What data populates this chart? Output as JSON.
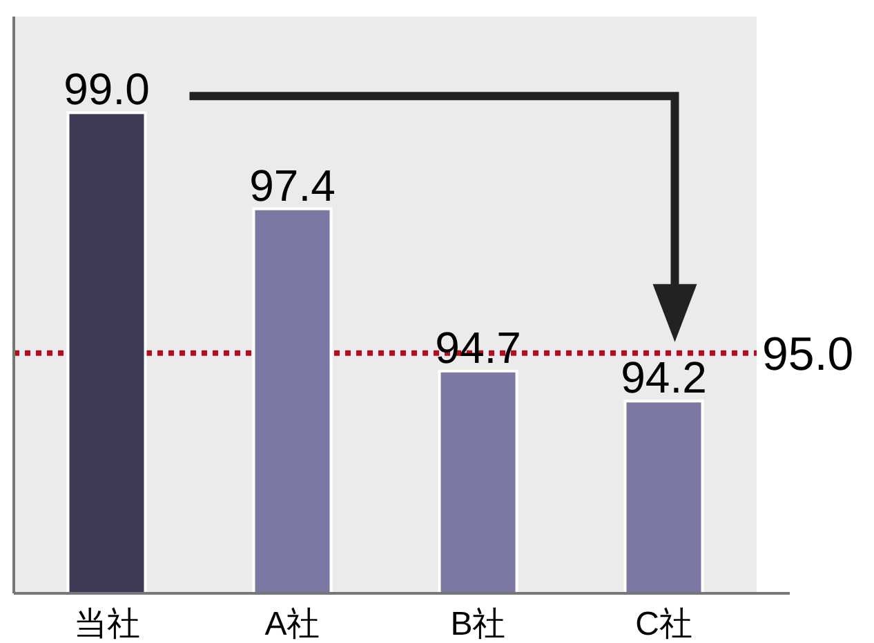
{
  "chart_data": {
    "type": "bar",
    "categories": [
      "当社",
      "A社",
      "B社",
      "C社"
    ],
    "values": [
      99.0,
      97.4,
      94.7,
      94.2
    ],
    "colors": [
      "#3c3a55",
      "#7b79a3",
      "#7b79a3",
      "#7b79a3"
    ],
    "ylim": [
      91,
      100.6
    ],
    "value_labels": [
      "99.0",
      "97.4",
      "94.7",
      "94.2"
    ],
    "ref_lines": [
      {
        "axis": "y",
        "value": 95.0,
        "label": "95.0",
        "color": "#b0101c",
        "line_style": "dotted"
      }
    ]
  }
}
